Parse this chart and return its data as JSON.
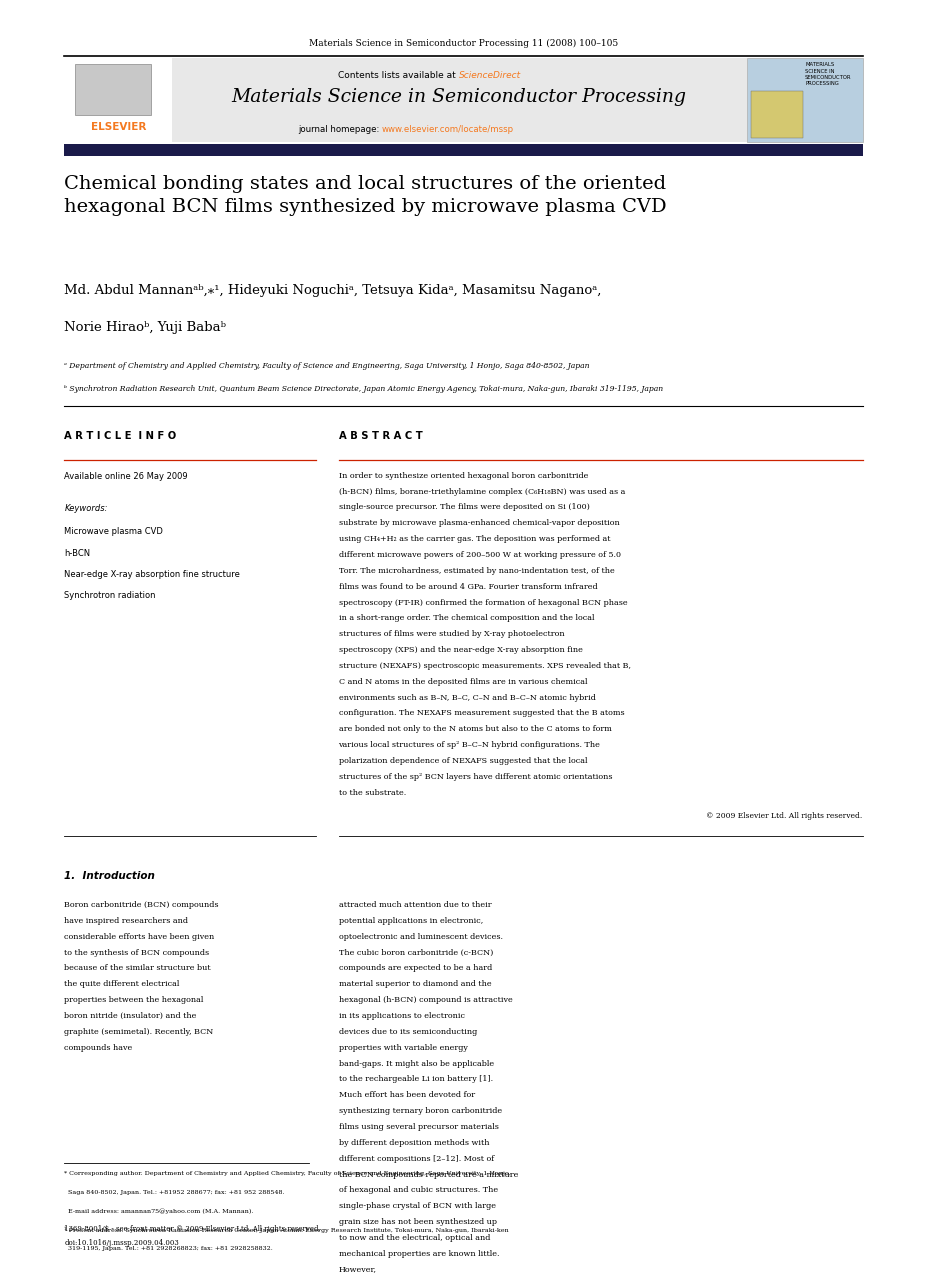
{
  "page_width": 9.07,
  "page_height": 12.38,
  "bg_color": "#ffffff",
  "header_journal": "Materials Science in Semiconductor Processing 11 (2008) 100–105",
  "journal_title": "Materials Science in Semiconductor Processing",
  "contents_line": "Contents lists available at ScienceDirect",
  "journal_homepage": "journal homepage: www.elsevier.com/locate/mssp",
  "elsevier_orange": "#f47920",
  "sciencedirect_color": "#f47920",
  "homepage_link_color": "#f47920",
  "paper_title": "Chemical bonding states and local structures of the oriented\nhexagonal BCN films synthesized by microwave plasma CVD",
  "authors_line1": "Md. Abdul Mannanᵃᵇ,⁎¹, Hideyuki Noguchiᵃ, Tetsuya Kidaᵃ, Masamitsu Naganoᵃ,",
  "authors_line2": "Norie Hiraoᵇ, Yuji Babaᵇ",
  "affil_a": "ᵃ Department of Chemistry and Applied Chemistry, Faculty of Science and Engineering, Saga University, 1 Honjo, Saga 840-8502, Japan",
  "affil_b": "ᵇ Synchrotron Radiation Research Unit, Quantum Beam Science Directorate, Japan Atomic Energy Agency, Tokai-mura, Naka-gun, Ibaraki 319-1195, Japan",
  "article_info_title": "A R T I C L E  I N F O",
  "abstract_title": "A B S T R A C T",
  "available_online": "Available online 26 May 2009",
  "keywords_label": "Keywords:",
  "keywords": [
    "Microwave plasma CVD",
    "h-BCN",
    "Near-edge X-ray absorption fine structure",
    "Synchrotron radiation"
  ],
  "abstract_text": "In order to synthesize oriented hexagonal boron carbonitride (h-BCN) films, borane-triethylamine complex (C₆H₁₈BN) was used as a single-source precursor. The films were deposited on Si (100) substrate by microwave plasma-enhanced chemical-vapor deposition using CH₄+H₂ as the carrier gas. The deposition was performed at different microwave powers of 200–500 W at working pressure of 5.0 Torr. The microhardness, estimated by nano-indentation test, of the films was found to be around 4 GPa. Fourier transform infrared spectroscopy (FT-IR) confirmed the formation of hexagonal BCN phase in a short-range order. The chemical composition and the local structures of films were studied by X-ray photoelectron spectroscopy (XPS) and the near-edge X-ray absorption fine structure (NEXAFS) spectroscopic measurements. XPS revealed that B, C and N atoms in the deposited films are in various chemical environments such as B–N, B–C, C–N and B–C–N atomic hybrid configuration. The NEXAFS measurement suggested that the B atoms are bonded not only to the N atoms but also to the C atoms to form various local structures of sp² B–C–N hybrid configurations. The polarization dependence of NEXAFS suggested that the local structures of the sp² BCN layers have different atomic orientations to the substrate.",
  "copyright": "© 2009 Elsevier Ltd. All rights reserved.",
  "intro_title": "1.  Introduction",
  "intro_left": "Boron carbonitride (BCN) compounds have inspired researchers and considerable efforts have been given to the synthesis of BCN compounds because of the similar structure but the quite different electrical properties between the hexagonal boron nitride (insulator) and the graphite (semimetal). Recently, BCN compounds have",
  "intro_right": "attracted much attention due to their potential applications in electronic, optoelectronic and luminescent devices. The cubic boron carbonitride (c-BCN) compounds are expected to be a hard material superior to diamond and the hexagonal (h-BCN) compound is attractive in its applications to electronic devices due to its semiconducting properties with variable energy band-gaps. It might also be applicable to the rechargeable Li ion battery [1]. Much effort has been devoted for synthesizing ternary boron carbonitride films using several precursor materials by different deposition methods with different compositions [2–12]. Most of the BCN compounds reported are a mixture of hexagonal and cubic structures. The single-phase crystal of BCN with large grain size has not been synthesized up to now and the electrical, optical and mechanical properties are known little. However,",
  "footnote_star": "* Corresponding author. Department of Chemistry and Applied Chemistry, Faculty of Science and Engineering, Saga University, 1 Honjo,",
  "footnote_star2": "  Saga 840-8502, Japan. Tel.: +81952 288677; fax: +81 952 288548.",
  "footnote_email": "  E-mail address: amannan75@yahoo.com (M.A. Mannan).",
  "footnote_1a": "¹ Present address: Synchrotron Radiation Research Center, Japan Atomic Energy Research Institute, Tokai-mura, Naka-gun, Ibaraki-ken",
  "footnote_1b": "  319-1195, Japan. Tel.: +81 2928268823; fax: +81 2928258832.",
  "issn_line": "1369-8001/$ - see front matter © 2009 Elsevier Ltd. All rights reserved.",
  "doi_line": "doi:10.1016/j.mssp.2009.04.003",
  "header_bg": "#e8e8e8",
  "dark_bar_color": "#1a1a4a"
}
